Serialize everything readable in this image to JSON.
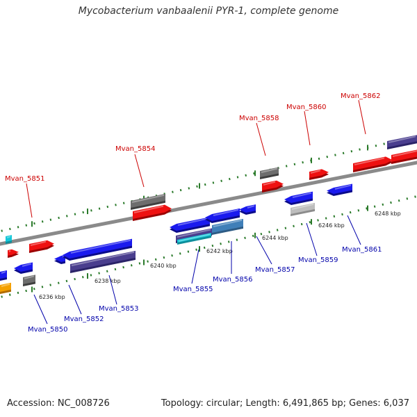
{
  "title": "Mycobacterium vanbaalenii PYR-1, complete genome",
  "footer": {
    "accession": "Accession: NC_008726",
    "summary": "Topology: circular; Length: 6,491,865 bp; Genes: 6,037"
  },
  "colors": {
    "forward_label": "#cc0000",
    "reverse_label": "#0000aa",
    "backbone": "#888888",
    "tick_forward": "#2a7a2a",
    "tick_reverse": "#2a7a2a",
    "gene_red": "#ee1111",
    "gene_blue": "#1a1aee",
    "gene_gray": "#6d6d6d",
    "gene_navy": "#4a3e8e",
    "gene_lightgray": "#bdbdbd",
    "gene_cyan": "#12c7d8",
    "gene_orange": "#f4a000",
    "gene_steel": "#3f7fb8"
  },
  "axis_ticks": [
    "6236 kbp",
    "6238 kbp",
    "6240 kbp",
    "6242 kbp",
    "6244 kbp",
    "6246 kbp",
    "6248 kbp"
  ],
  "forward_genes": [
    "Mvan_5851",
    "Mvan_5854",
    "Mvan_5858",
    "Mvan_5860",
    "Mvan_5862"
  ],
  "reverse_genes": [
    "Mvan_5850",
    "Mvan_5852",
    "Mvan_5853",
    "Mvan_5855",
    "Mvan_5856",
    "Mvan_5857",
    "Mvan_5859",
    "Mvan_5861"
  ]
}
